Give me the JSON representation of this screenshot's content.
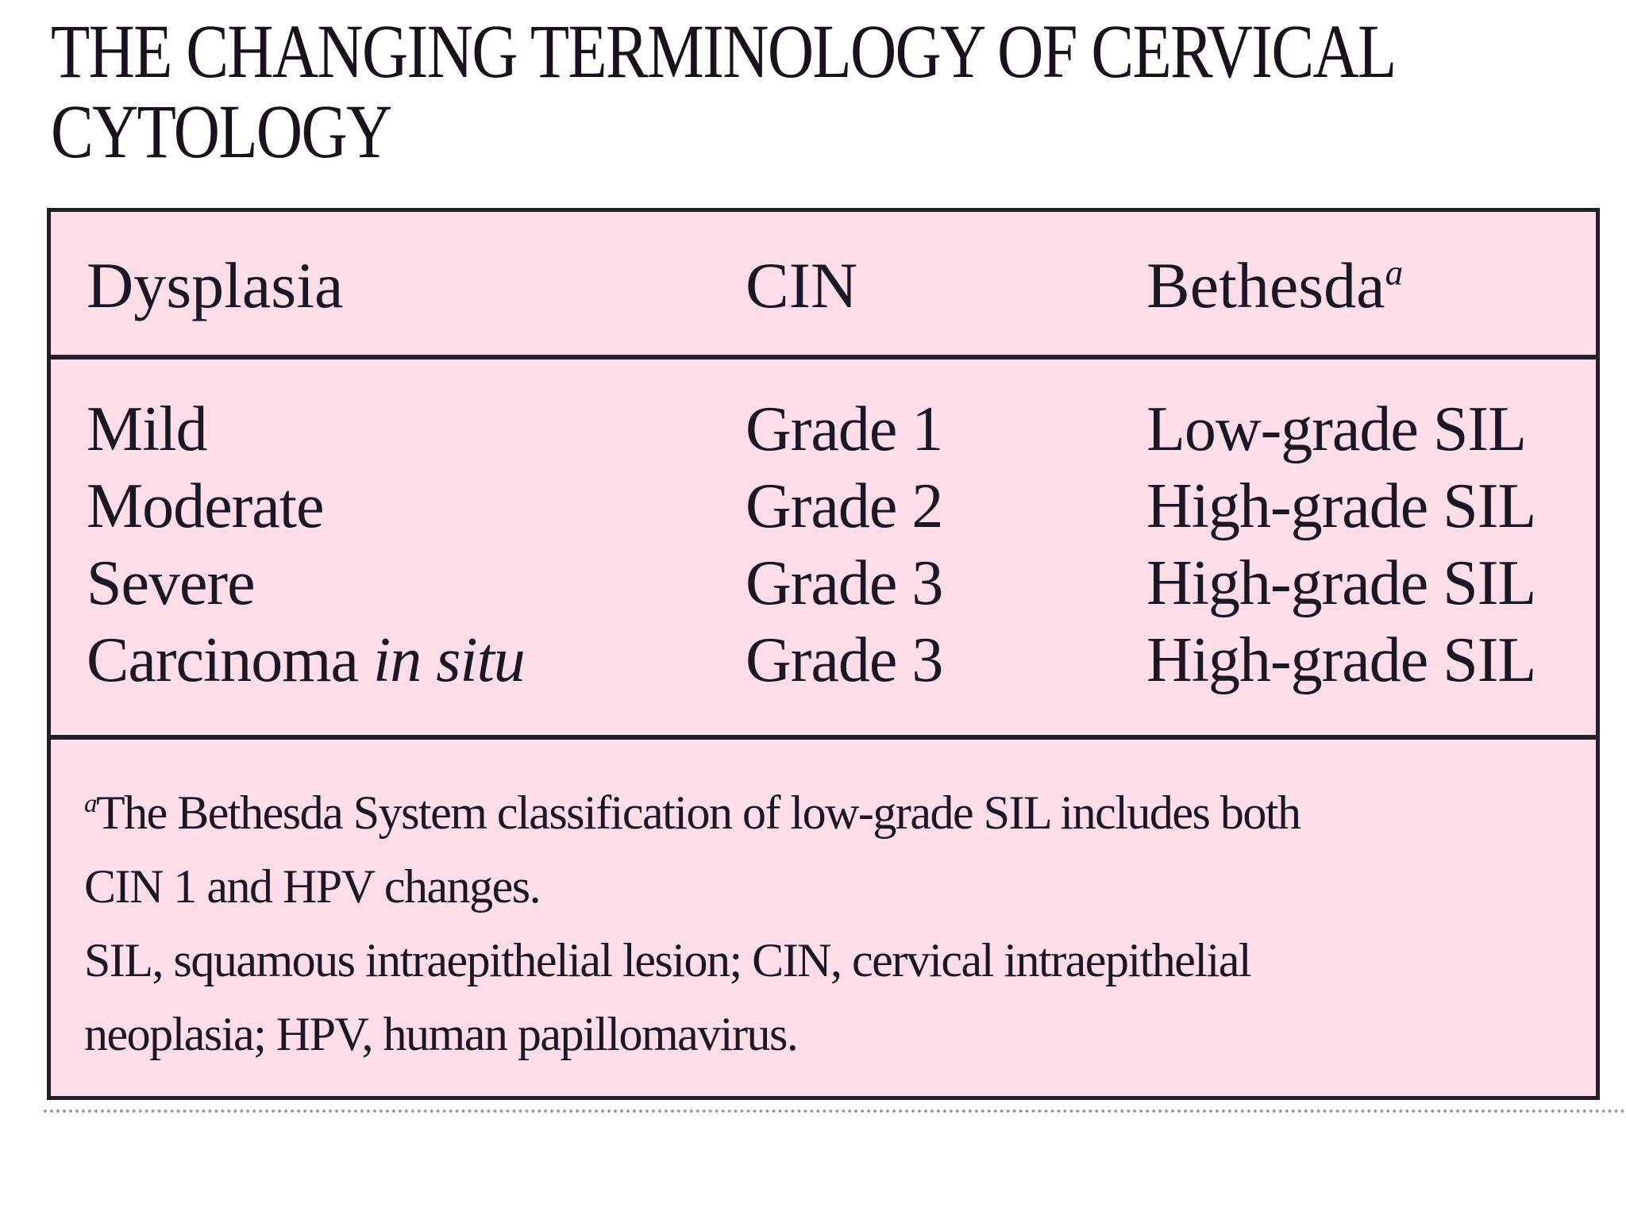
{
  "title": {
    "line1": "THE CHANGING TERMINOLOGY OF CERVICAL",
    "line2": "CYTOLOGY"
  },
  "table": {
    "columns": [
      {
        "label": "Dysplasia",
        "sup": ""
      },
      {
        "label": "CIN",
        "sup": ""
      },
      {
        "label": "Bethesda",
        "sup": "a"
      }
    ],
    "rows": [
      {
        "dysplasia": "Mild",
        "dysplasia_italic": "",
        "cin": "Grade 1",
        "bethesda": "Low-grade SIL"
      },
      {
        "dysplasia": "Moderate",
        "dysplasia_italic": "",
        "cin": "Grade 2",
        "bethesda": "High-grade SIL"
      },
      {
        "dysplasia": "Severe",
        "dysplasia_italic": "",
        "cin": "Grade 3",
        "bethesda": "High-grade SIL"
      },
      {
        "dysplasia": "Carcinoma ",
        "dysplasia_italic": "in situ",
        "cin": "Grade 3",
        "bethesda": "High-grade SIL"
      }
    ],
    "footnote_lines": [
      {
        "sup": "a",
        "text": "The Bethesda System classification of low-grade SIL includes both"
      },
      {
        "sup": "",
        "text": "CIN 1 and HPV changes."
      },
      {
        "sup": "",
        "text": "SIL, squamous intraepithelial lesion; CIN, cervical intraepithelial"
      },
      {
        "sup": "",
        "text": "neoplasia; HPV, human papillomavirus."
      }
    ]
  },
  "colors": {
    "table_background": "#fcdde8",
    "table_border": "#241f26",
    "text": "#1b1723"
  }
}
